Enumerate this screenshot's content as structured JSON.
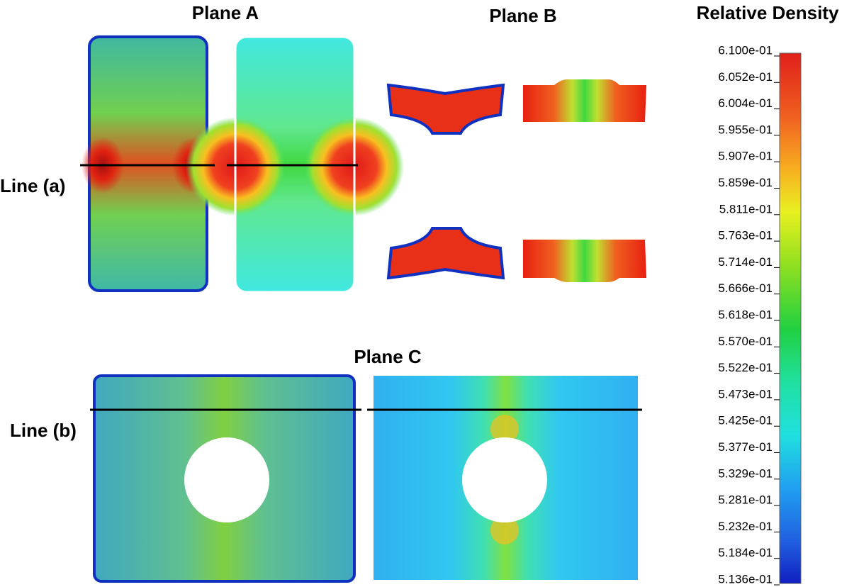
{
  "panels": {
    "plane_a": "Plane A",
    "plane_b": "Plane B",
    "plane_c": "Plane C"
  },
  "lines": {
    "a": "Line (a)",
    "b": "Line (b)"
  },
  "colorbar": {
    "title": "Relative Density",
    "labels": [
      "6.100e-01",
      "6.052e-01",
      "6.004e-01",
      "5.955e-01",
      "5.907e-01",
      "5.859e-01",
      "5.811e-01",
      "5.763e-01",
      "5.714e-01",
      "5.666e-01",
      "5.618e-01",
      "5.570e-01",
      "5.522e-01",
      "5.473e-01",
      "5.425e-01",
      "5.377e-01",
      "5.329e-01",
      "5.281e-01",
      "5.232e-01",
      "5.184e-01",
      "5.136e-01"
    ]
  }
}
